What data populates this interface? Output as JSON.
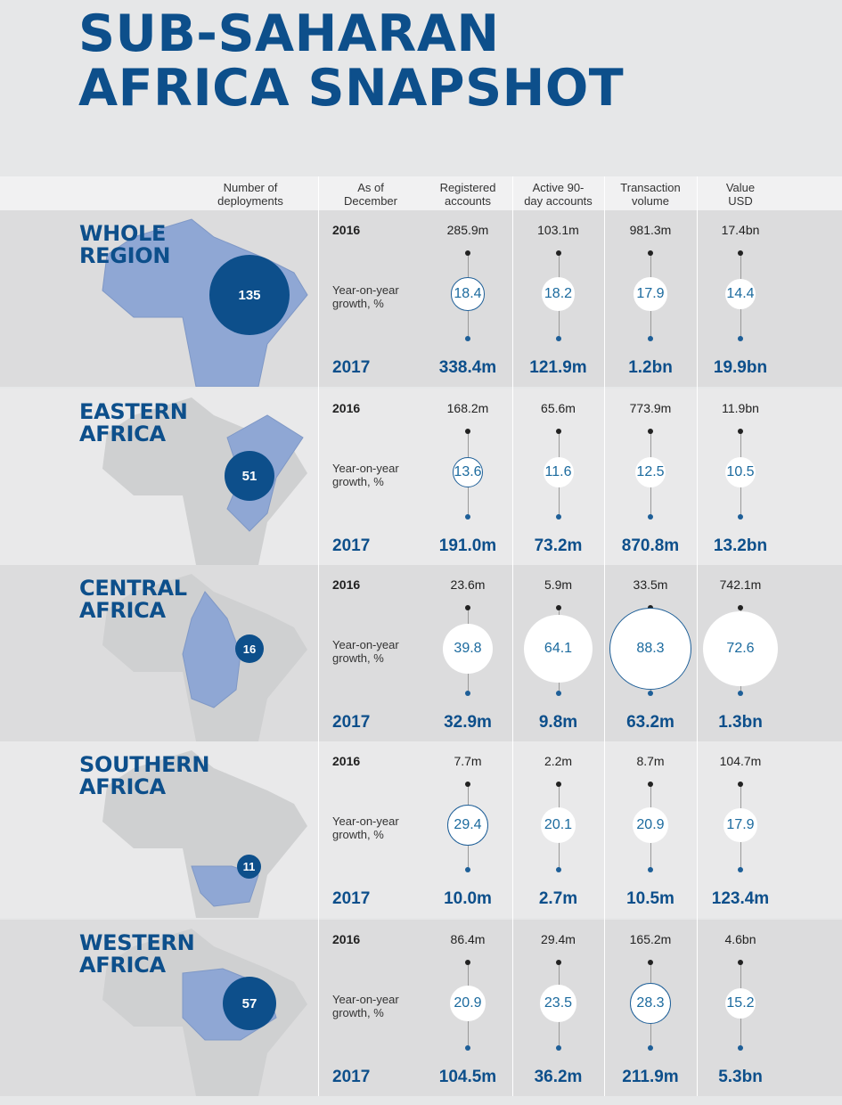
{
  "title": {
    "line1": "SUB-SAHARAN",
    "line2": "AFRICA SNAPSHOT"
  },
  "colors": {
    "brand_blue": "#0d4f8b",
    "map_highlight": "#8fa7d4",
    "map_base": "#cfd0d1"
  },
  "headers": {
    "deployments": "Number of\ndeployments",
    "as_of": "As of\nDecember",
    "registered": "Registered\naccounts",
    "active": "Active 90-\nday accounts",
    "transaction": "Transaction\nvolume",
    "value": "Value\nUSD"
  },
  "labels": {
    "year_2016": "2016",
    "year_2017": "2017",
    "yoy": "Year-on-year\ngrowth, %"
  },
  "regions": [
    {
      "name_line1": "WHOLE",
      "name_line2": "REGION",
      "deployments": "135",
      "registered": {
        "v2016": "285.9m",
        "growth": "18.4",
        "v2017": "338.4m"
      },
      "active": {
        "v2016": "103.1m",
        "growth": "18.2",
        "v2017": "121.9m"
      },
      "transaction": {
        "v2016": "981.3m",
        "growth": "17.9",
        "v2017": "1.2bn"
      },
      "value": {
        "v2016": "17.4bn",
        "growth": "14.4",
        "v2017": "19.9bn"
      }
    },
    {
      "name_line1": "EASTERN",
      "name_line2": "AFRICA",
      "deployments": "51",
      "registered": {
        "v2016": "168.2m",
        "growth": "13.6",
        "v2017": "191.0m"
      },
      "active": {
        "v2016": "65.6m",
        "growth": "11.6",
        "v2017": "73.2m"
      },
      "transaction": {
        "v2016": "773.9m",
        "growth": "12.5",
        "v2017": "870.8m"
      },
      "value": {
        "v2016": "11.9bn",
        "growth": "10.5",
        "v2017": "13.2bn"
      }
    },
    {
      "name_line1": "CENTRAL",
      "name_line2": "AFRICA",
      "deployments": "16",
      "registered": {
        "v2016": "23.6m",
        "growth": "39.8",
        "v2017": "32.9m"
      },
      "active": {
        "v2016": "5.9m",
        "growth": "64.1",
        "v2017": "9.8m"
      },
      "transaction": {
        "v2016": "33.5m",
        "growth": "88.3",
        "v2017": "63.2m"
      },
      "value": {
        "v2016": "742.1m",
        "growth": "72.6",
        "v2017": "1.3bn"
      }
    },
    {
      "name_line1": "SOUTHERN",
      "name_line2": "AFRICA",
      "deployments": "11",
      "registered": {
        "v2016": "7.7m",
        "growth": "29.4",
        "v2017": "10.0m"
      },
      "active": {
        "v2016": "2.2m",
        "growth": "20.1",
        "v2017": "2.7m"
      },
      "transaction": {
        "v2016": "8.7m",
        "growth": "20.9",
        "v2017": "10.5m"
      },
      "value": {
        "v2016": "104.7m",
        "growth": "17.9",
        "v2017": "123.4m"
      }
    },
    {
      "name_line1": "WESTERN",
      "name_line2": "AFRICA",
      "deployments": "57",
      "registered": {
        "v2016": "86.4m",
        "growth": "20.9",
        "v2017": "104.5m"
      },
      "active": {
        "v2016": "29.4m",
        "growth": "23.5",
        "v2017": "36.2m"
      },
      "transaction": {
        "v2016": "165.2m",
        "growth": "28.3",
        "v2017": "211.9m"
      },
      "value": {
        "v2016": "4.6bn",
        "growth": "15.2",
        "v2017": "5.3bn"
      }
    }
  ]
}
